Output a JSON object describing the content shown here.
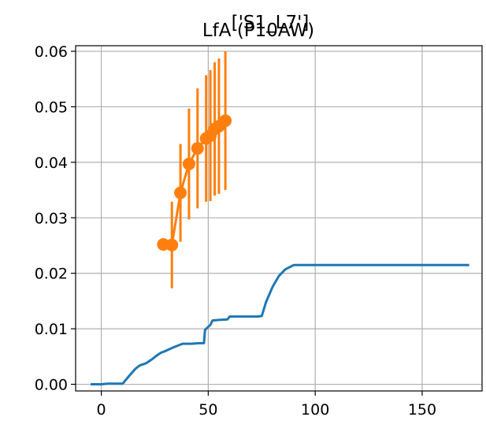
{
  "chart_data": {
    "type": "line",
    "title": "LfA (P10AW)",
    "overlay_title": "['S1_L7']",
    "xlabel": "",
    "ylabel": "",
    "xlim": [
      -12,
      178
    ],
    "ylim": [
      -0.0012,
      0.061
    ],
    "grid": true,
    "x_ticks": [
      0,
      50,
      100,
      150
    ],
    "y_ticks": [
      0.0,
      0.01,
      0.02,
      0.03,
      0.04,
      0.05,
      0.06
    ],
    "x_tick_labels": [
      "0",
      "50",
      "100",
      "150"
    ],
    "y_tick_labels": [
      "0.00",
      "0.01",
      "0.02",
      "0.03",
      "0.04",
      "0.05",
      "0.06"
    ],
    "colors": {
      "line": "#1f77b4",
      "errorbar": "#ff7f0e",
      "grid": "#b0b0b0"
    },
    "series": [
      {
        "style": "line",
        "color": "#1f77b4",
        "x": [
          -5,
          0,
          3,
          6,
          10,
          13,
          16,
          18,
          21,
          24,
          26,
          28,
          30,
          34,
          38,
          42,
          46,
          48,
          48.5,
          51,
          52,
          55,
          59,
          60,
          67,
          73,
          75,
          77,
          80,
          83,
          86,
          88,
          90,
          95,
          110,
          130,
          150,
          172
        ],
        "y": [
          0.0,
          0.0,
          0.0001,
          0.0001,
          0.0001,
          0.0015,
          0.0028,
          0.0034,
          0.0038,
          0.0046,
          0.0052,
          0.0057,
          0.006,
          0.0067,
          0.0073,
          0.0073,
          0.0074,
          0.0074,
          0.0098,
          0.0107,
          0.0115,
          0.0116,
          0.0117,
          0.0122,
          0.0122,
          0.0122,
          0.0123,
          0.0148,
          0.0175,
          0.0195,
          0.0207,
          0.0211,
          0.0215,
          0.0215,
          0.0215,
          0.0215,
          0.0215,
          0.0215
        ]
      },
      {
        "style": "errorbar",
        "color": "#ff7f0e",
        "x": [
          29,
          33,
          37,
          41,
          45,
          49,
          51,
          53,
          55,
          58
        ],
        "y": [
          0.0252,
          0.0251,
          0.0345,
          0.0397,
          0.0425,
          0.0443,
          0.0448,
          0.046,
          0.0465,
          0.0475
        ],
        "yerr": [
          0.0,
          0.0078,
          0.0088,
          0.01,
          0.0108,
          0.0114,
          0.0118,
          0.012,
          0.0122,
          0.0125
        ]
      }
    ]
  }
}
